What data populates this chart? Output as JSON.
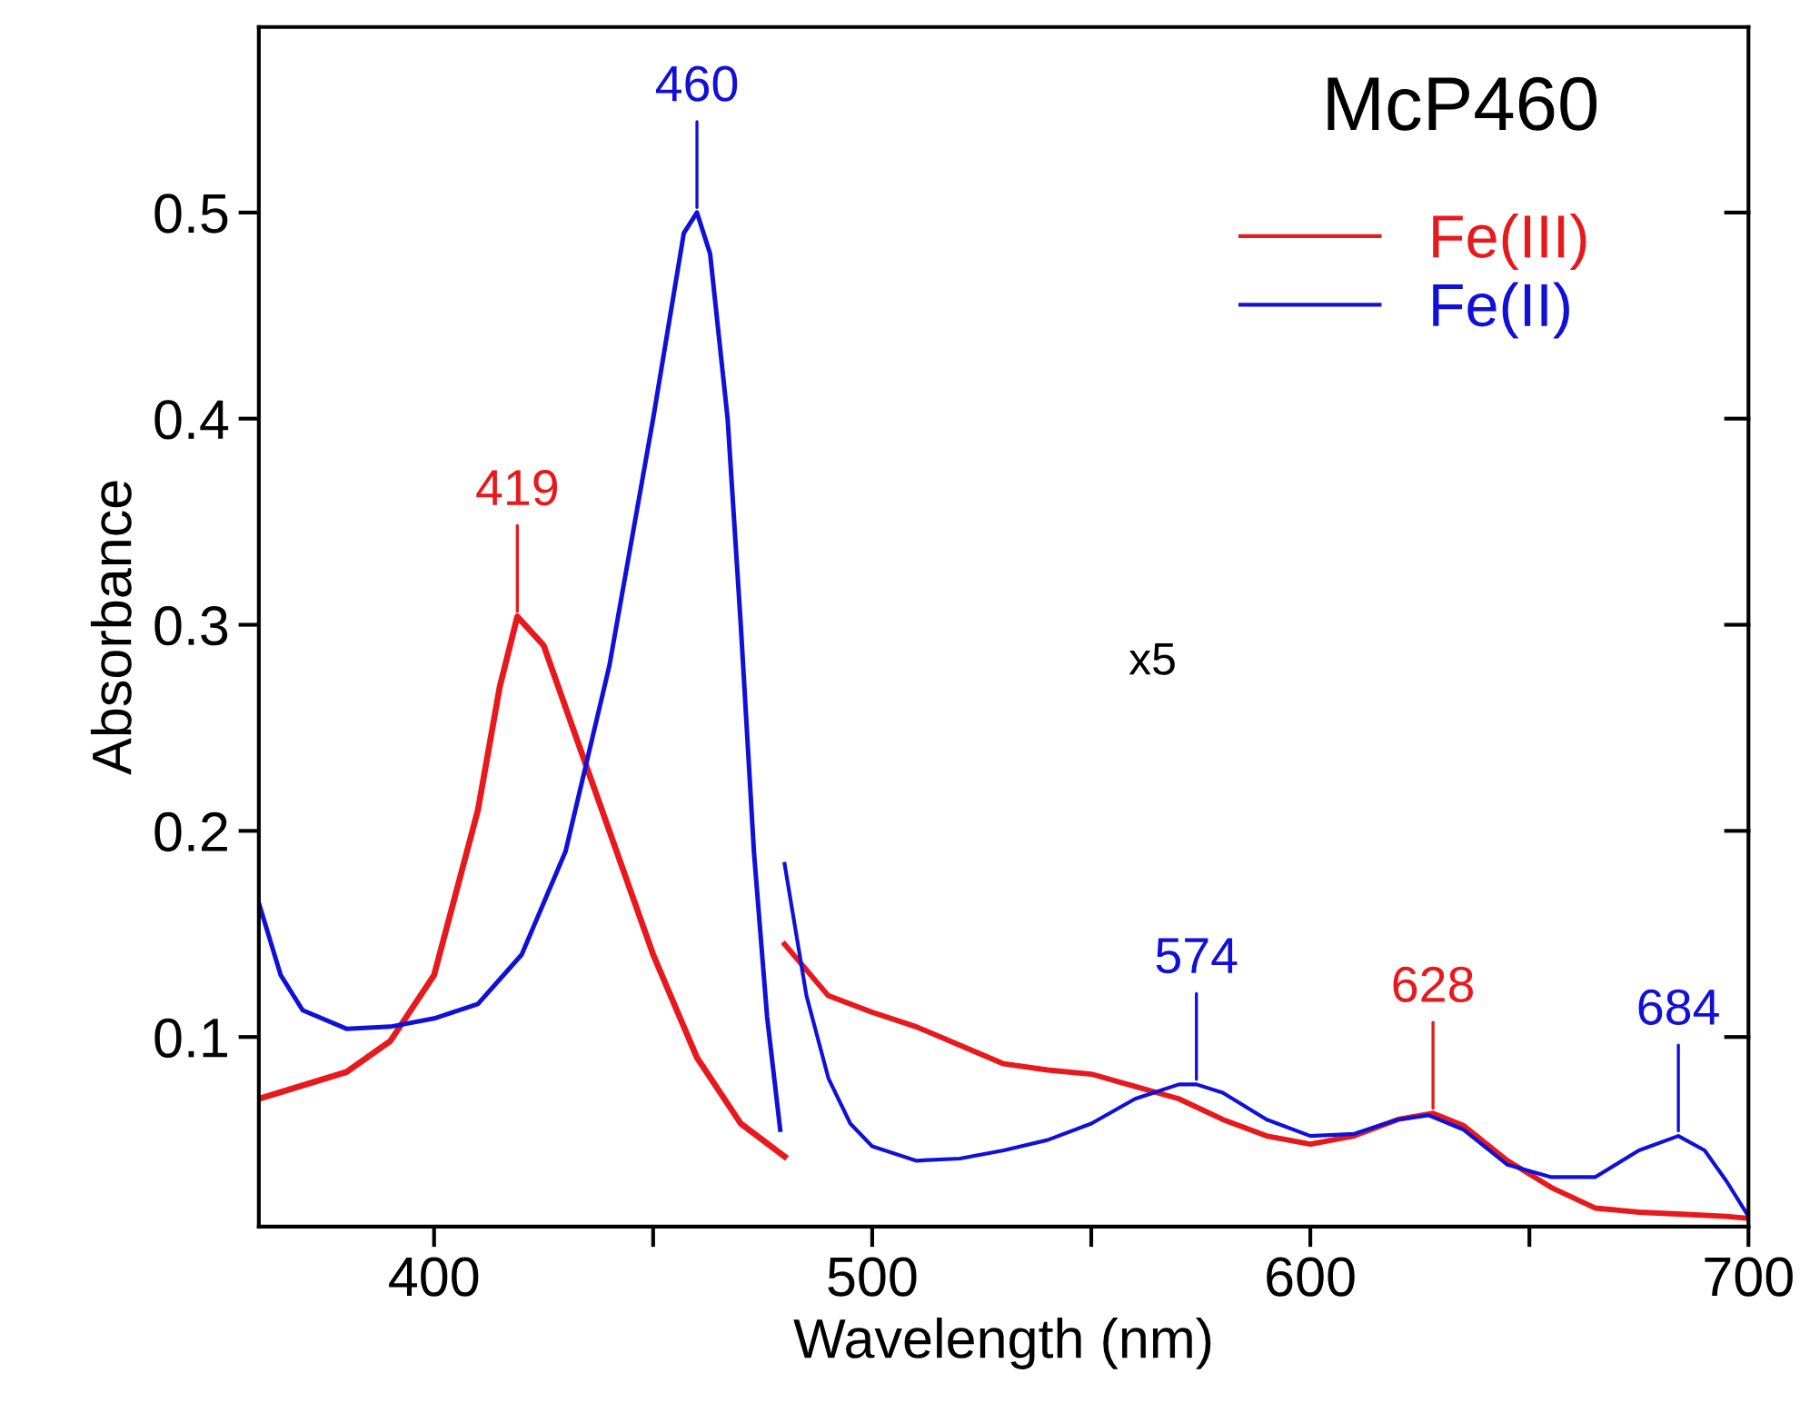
{
  "chart_data": {
    "type": "line",
    "title": "McP460",
    "xlabel": "Wavelength (nm)",
    "ylabel": "Absorbance",
    "xlim": [
      360,
      700
    ],
    "ylim": [
      0.008,
      0.59
    ],
    "xticks": [
      400,
      {
        "value": 450,
        "label": null
      },
      500,
      {
        "value": 550,
        "label": null
      },
      600,
      {
        "value": 650,
        "label": null
      },
      700
    ],
    "yticks": [
      0.1,
      0.2,
      0.3,
      0.4,
      0.5
    ],
    "legend": "top right",
    "grid": false,
    "line_style": "solid",
    "series": [
      {
        "name": "Fe(III)",
        "color": "#e8191c",
        "x": [
          360,
          380,
          390,
          400,
          410,
          415,
          419,
          425,
          430,
          440,
          450,
          460,
          470,
          480
        ],
        "values": [
          0.07,
          0.083,
          0.098,
          0.13,
          0.21,
          0.27,
          0.304,
          0.29,
          0.26,
          0.2,
          0.14,
          0.09,
          0.058,
          0.042
        ]
      },
      {
        "color": "#e8191c",
        "x": [
          480,
          490,
          500,
          510,
          520,
          530,
          540,
          550,
          560,
          570,
          580,
          590,
          600,
          610,
          620,
          628,
          635,
          645,
          655,
          665,
          675,
          685,
          695,
          700
        ],
        "values": [
          0.145,
          0.12,
          0.112,
          0.105,
          0.096,
          0.087,
          0.084,
          0.082,
          0.076,
          0.07,
          0.06,
          0.052,
          0.048,
          0.052,
          0.06,
          0.063,
          0.057,
          0.04,
          0.027,
          0.017,
          0.015,
          0.014,
          0.013,
          0.012
        ]
      },
      {
        "name": "Fe(II)",
        "color": "#1010d8",
        "x": [
          360,
          365,
          370,
          380,
          390,
          400,
          410,
          420,
          430,
          440,
          450,
          457,
          460,
          463,
          467,
          470,
          473,
          476,
          479
        ],
        "values": [
          0.165,
          0.13,
          0.113,
          0.104,
          0.105,
          0.109,
          0.116,
          0.14,
          0.19,
          0.28,
          0.4,
          0.49,
          0.5,
          0.48,
          0.4,
          0.3,
          0.19,
          0.11,
          0.055
        ]
      },
      {
        "color": "#1010d8",
        "x": [
          480,
          485,
          490,
          495,
          500,
          510,
          520,
          530,
          540,
          550,
          560,
          570,
          574,
          580,
          590,
          600,
          610,
          620,
          627,
          635,
          645,
          655,
          665,
          675,
          684,
          690,
          695,
          700
        ],
        "values": [
          0.184,
          0.12,
          0.08,
          0.058,
          0.047,
          0.04,
          0.041,
          0.045,
          0.05,
          0.058,
          0.07,
          0.077,
          0.077,
          0.073,
          0.06,
          0.052,
          0.053,
          0.06,
          0.062,
          0.055,
          0.038,
          0.032,
          0.032,
          0.045,
          0.052,
          0.045,
          0.03,
          0.013
        ]
      }
    ],
    "annotations": [
      {
        "text": "419",
        "x": 419,
        "y": 0.304
      },
      {
        "text": "460",
        "x": 460,
        "y": 0.5
      },
      {
        "text": "574",
        "x": 574,
        "y": 0.077
      },
      {
        "text": "628",
        "x": 628,
        "y": 0.063
      },
      {
        "text": "684",
        "x": 684,
        "y": 0.052
      },
      "x5"
    ]
  }
}
